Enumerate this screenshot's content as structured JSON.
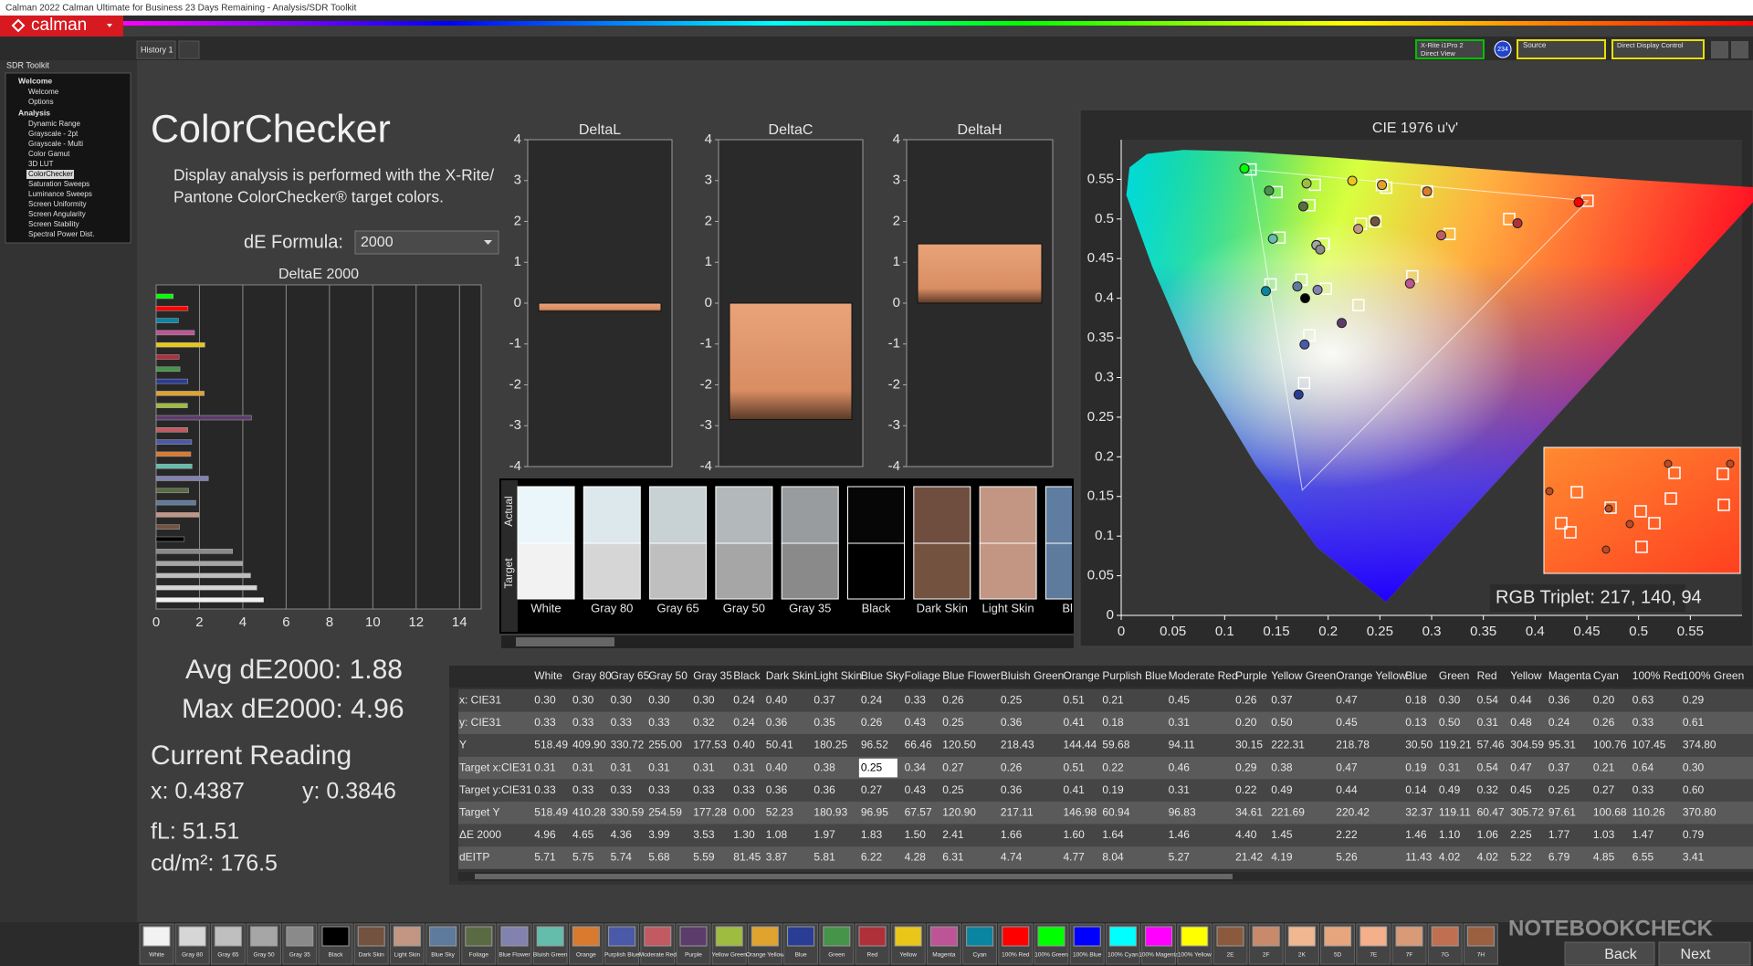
{
  "app": {
    "window_title": "Calman 2022 Calman Ultimate for Business 23 Days Remaining  - Analysis/SDR Toolkit",
    "logo": "calman",
    "tab": "History 1",
    "meter": "X-Rite i1Pro 2",
    "meter_mode": "Direct View",
    "meter_badge": "234",
    "source": "Source",
    "display": "Direct Display Control",
    "back": "Back",
    "next": "Next",
    "watermark": "NOTEBOOKCHECK"
  },
  "nav": {
    "title": "SDR Toolkit",
    "groups": [
      {
        "name": "Welcome",
        "items": [
          "Welcome",
          "Options"
        ]
      },
      {
        "name": "Analysis",
        "items": [
          "Dynamic Range",
          "Grayscale - 2pt",
          "Grayscale - Multi",
          "Color Gamut",
          "3D LUT",
          "ColorChecker",
          "Saturation Sweeps",
          "Luminance Sweeps",
          "Screen Uniformity",
          "Screen Angularity",
          "Screen Stability",
          "Spectral Power Dist."
        ]
      }
    ]
  },
  "heading": {
    "title": "ColorChecker",
    "description": [
      "Display analysis is performed with the X-Rite/",
      "Pantone ColorChecker® target colors."
    ],
    "formula_label": "dE Formula:",
    "formula": "2000"
  },
  "chart_data": [
    {
      "type": "hbar",
      "title": "DeltaE 2000",
      "values": [
        4.96,
        4.65,
        4.36,
        3.99,
        3.53,
        1.3,
        1.08,
        1.97,
        1.83,
        1.5,
        2.41,
        1.66,
        1.6,
        1.64,
        1.46,
        4.4,
        1.45,
        2.22,
        1.46,
        1.1,
        1.06,
        2.25,
        1.77,
        1.03,
        1.47,
        0.79
      ],
      "xlim": [
        0,
        15
      ],
      "xticks": [
        0,
        2,
        4,
        6,
        8,
        10,
        12,
        14
      ],
      "grid": true
    },
    {
      "type": "bar",
      "title": "DeltaL",
      "values": [
        -0.2
      ],
      "ylim": [
        -4,
        4
      ],
      "yticks": [
        -4,
        -3,
        -2,
        -1,
        0,
        1,
        2,
        3,
        4
      ]
    },
    {
      "type": "bar",
      "title": "DeltaC",
      "values": [
        -2.85
      ],
      "ylim": [
        -4,
        4
      ],
      "yticks": [
        -4,
        -3,
        -2,
        -1,
        0,
        1,
        2,
        3,
        4
      ]
    },
    {
      "type": "bar",
      "title": "DeltaH",
      "values": [
        1.45
      ],
      "ylim": [
        -4,
        4
      ],
      "yticks": [
        -4,
        -3,
        -2,
        -1,
        0,
        1,
        2,
        3,
        4
      ]
    },
    {
      "type": "scatter",
      "title": "CIE 1976 u'v'",
      "xlim": [
        0,
        0.6
      ],
      "ylim": [
        0,
        0.6
      ],
      "xticks": [
        0,
        0.05,
        0.1,
        0.15,
        0.2,
        0.25,
        0.3,
        0.35,
        0.4,
        0.45,
        0.5,
        0.55
      ],
      "yticks": [
        0,
        0.05,
        0.1,
        0.15,
        0.2,
        0.25,
        0.3,
        0.35,
        0.4,
        0.45,
        0.5,
        0.55
      ]
    }
  ],
  "swatches": {
    "actual": "Actual",
    "target": "Target",
    "labels": [
      "White",
      "Gray 80",
      "Gray 65",
      "Gray 50",
      "Gray 35",
      "Black",
      "Dark Skin",
      "Light Skin",
      "Blue"
    ]
  },
  "rgb_triplet": "RGB Triplet: 217, 140, 94",
  "stats": {
    "avg": "Avg dE2000: 1.88",
    "max": "Max dE2000: 4.96",
    "current": "Current Reading",
    "x": "x: 0.4387",
    "y": "y: 0.3846",
    "fl": "fL: 51.51",
    "cdm2": "cd/m²: 176.5"
  },
  "table": {
    "columns": [
      "White",
      "Gray 80",
      "Gray 65",
      "Gray 50",
      "Gray 35",
      "Black",
      "Dark Skin",
      "Light Skin",
      "Blue Sky",
      "Foliage",
      "Blue Flower",
      "Bluish Green",
      "Orange",
      "Purplish Blue",
      "Moderate Red",
      "Purple",
      "Yellow Green",
      "Orange Yellow",
      "Blue",
      "Green",
      "Red",
      "Yellow",
      "Magenta",
      "Cyan",
      "100% Red",
      "100% Green"
    ],
    "rows": [
      {
        "label": "x: CIE31",
        "values": [
          "0.30",
          "0.30",
          "0.30",
          "0.30",
          "0.30",
          "0.24",
          "0.40",
          "0.37",
          "0.24",
          "0.33",
          "0.26",
          "0.25",
          "0.51",
          "0.21",
          "0.45",
          "0.26",
          "0.37",
          "0.47",
          "0.18",
          "0.30",
          "0.54",
          "0.44",
          "0.36",
          "0.20",
          "0.63",
          "0.29"
        ]
      },
      {
        "label": "y: CIE31",
        "values": [
          "0.33",
          "0.33",
          "0.33",
          "0.33",
          "0.32",
          "0.24",
          "0.36",
          "0.35",
          "0.26",
          "0.43",
          "0.25",
          "0.36",
          "0.41",
          "0.18",
          "0.31",
          "0.20",
          "0.50",
          "0.45",
          "0.13",
          "0.50",
          "0.31",
          "0.48",
          "0.24",
          "0.26",
          "0.33",
          "0.61"
        ]
      },
      {
        "label": "Y",
        "values": [
          "518.49",
          "409.90",
          "330.72",
          "255.00",
          "177.53",
          "0.40",
          "50.41",
          "180.25",
          "96.52",
          "66.46",
          "120.50",
          "218.43",
          "144.44",
          "59.68",
          "94.11",
          "30.15",
          "222.31",
          "218.78",
          "30.50",
          "119.21",
          "57.46",
          "304.59",
          "95.31",
          "100.76",
          "107.45",
          "374.80"
        ]
      },
      {
        "label": "Target x:CIE31",
        "values": [
          "0.31",
          "0.31",
          "0.31",
          "0.31",
          "0.31",
          "0.31",
          "0.40",
          "0.38",
          "0.25",
          "0.34",
          "0.27",
          "0.26",
          "0.51",
          "0.22",
          "0.46",
          "0.29",
          "0.38",
          "0.47",
          "0.19",
          "0.31",
          "0.54",
          "0.47",
          "0.37",
          "0.21",
          "0.64",
          "0.30"
        ]
      },
      {
        "label": "Target y:CIE31",
        "values": [
          "0.33",
          "0.33",
          "0.33",
          "0.33",
          "0.33",
          "0.33",
          "0.36",
          "0.36",
          "0.27",
          "0.43",
          "0.25",
          "0.36",
          "0.41",
          "0.19",
          "0.31",
          "0.22",
          "0.49",
          "0.44",
          "0.14",
          "0.49",
          "0.32",
          "0.45",
          "0.25",
          "0.27",
          "0.33",
          "0.60"
        ]
      },
      {
        "label": "Target Y",
        "values": [
          "518.49",
          "410.28",
          "330.59",
          "254.59",
          "177.28",
          "0.00",
          "52.23",
          "180.93",
          "96.95",
          "67.57",
          "120.90",
          "217.11",
          "146.98",
          "60.94",
          "96.83",
          "34.61",
          "221.69",
          "220.42",
          "32.37",
          "119.11",
          "60.47",
          "305.72",
          "97.61",
          "100.68",
          "110.26",
          "370.80"
        ]
      },
      {
        "label": "ΔE 2000",
        "values": [
          "4.96",
          "4.65",
          "4.36",
          "3.99",
          "3.53",
          "1.30",
          "1.08",
          "1.97",
          "1.83",
          "1.50",
          "2.41",
          "1.66",
          "1.60",
          "1.64",
          "1.46",
          "4.40",
          "1.45",
          "2.22",
          "1.46",
          "1.10",
          "1.06",
          "2.25",
          "1.77",
          "1.03",
          "1.47",
          "0.79"
        ]
      },
      {
        "label": "dEITP",
        "values": [
          "5.71",
          "5.75",
          "5.74",
          "5.68",
          "5.59",
          "81.45",
          "3.87",
          "5.81",
          "6.22",
          "4.28",
          "6.31",
          "4.74",
          "4.77",
          "8.04",
          "5.27",
          "21.42",
          "4.19",
          "5.26",
          "11.43",
          "4.02",
          "4.02",
          "5.22",
          "6.79",
          "4.85",
          "6.55",
          "3.41"
        ]
      }
    ]
  },
  "patches": [
    "White",
    "Gray 80",
    "Gray 65",
    "Gray 50",
    "Gray 35",
    "Black",
    "Dark Skin",
    "Light Skin",
    "Blue Sky",
    "Foliage",
    "Blue Flower",
    "Bluish Green",
    "Orange",
    "Purplish Blue",
    "Moderate Red",
    "Purple",
    "Yellow Green",
    "Orange Yellow",
    "Blue",
    "Green",
    "Red",
    "Yellow",
    "Magenta",
    "Cyan",
    "100% Red",
    "100% Green",
    "100% Blue",
    "100% Cyan",
    "100% Magenta",
    "100% Yellow",
    "2E",
    "2F",
    "2K",
    "5D",
    "7E",
    "7F",
    "7G",
    "7H"
  ]
}
